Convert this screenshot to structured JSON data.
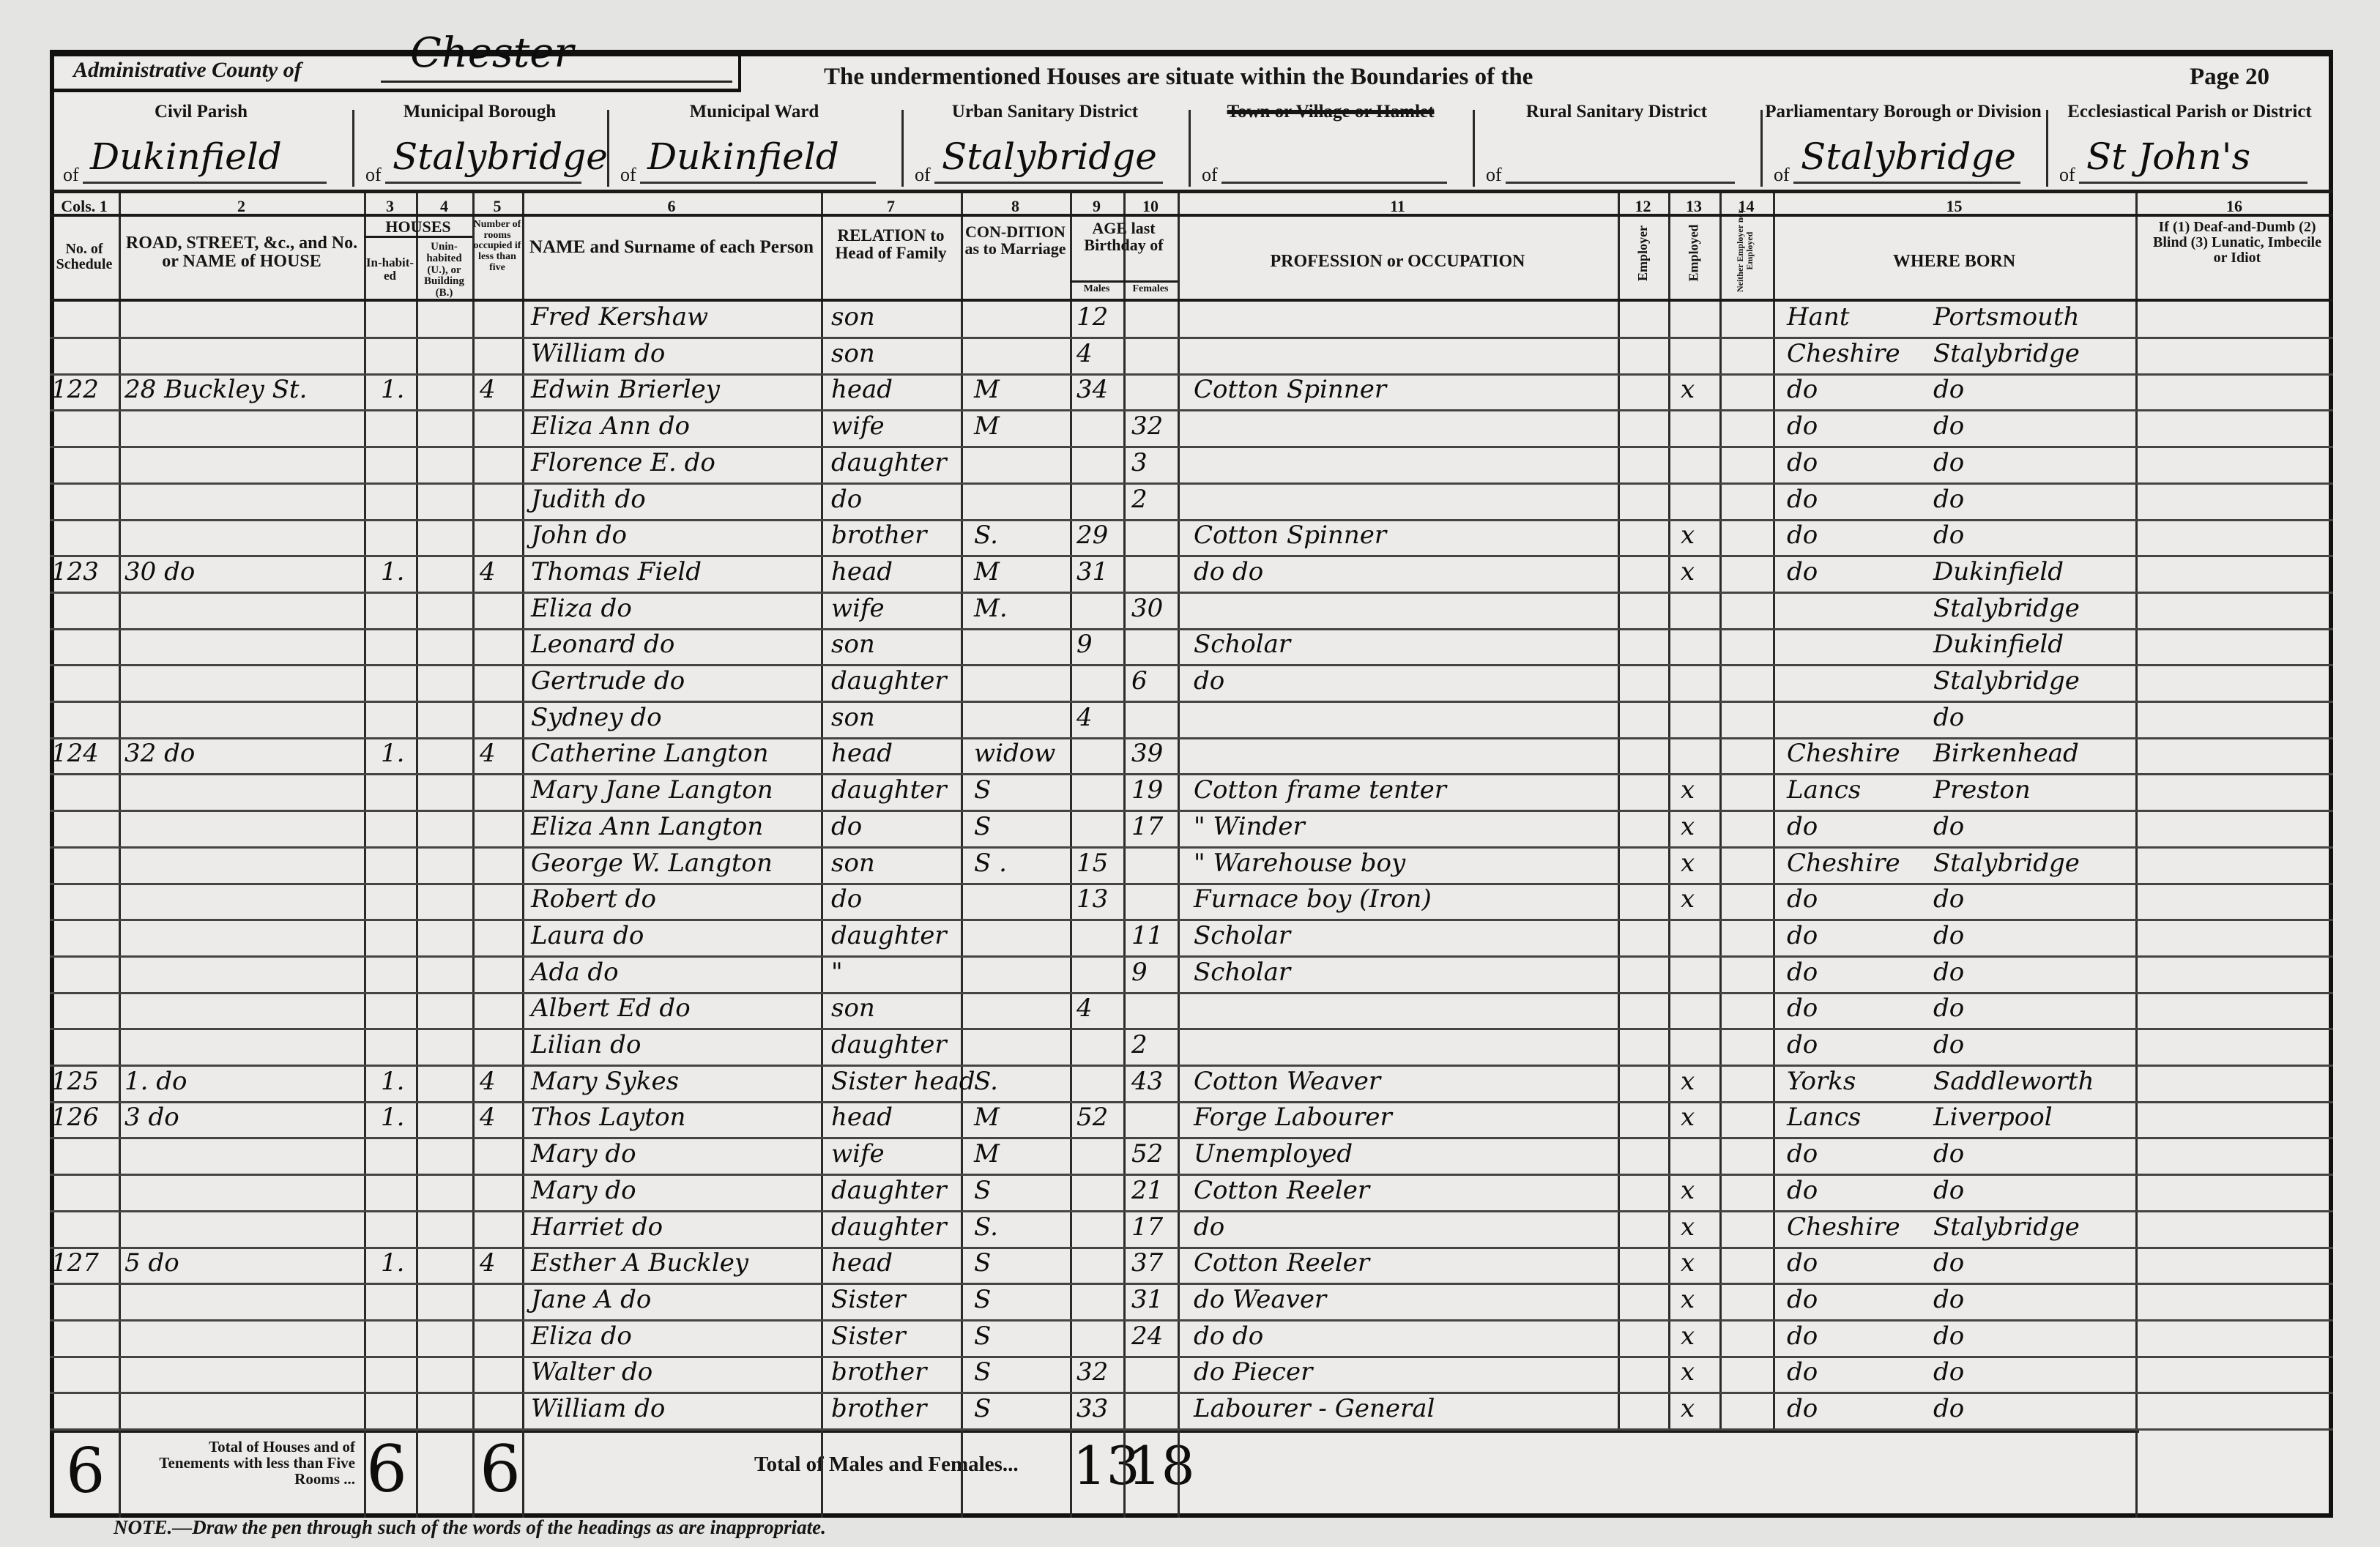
{
  "header": {
    "admin_county_label": "Administrative County of",
    "admin_county_value": "Chester",
    "title": "The undermentioned Houses are situate within the Boundaries of the",
    "page": "Page 20",
    "of_prefix": "of",
    "districts": [
      {
        "label": "Civil Parish",
        "value": "Dukinfield",
        "struck": false
      },
      {
        "label": "Municipal Borough",
        "value": "Stalybridge",
        "struck": false
      },
      {
        "label": "Municipal Ward",
        "value": "Dukinfield",
        "struck": false
      },
      {
        "label": "Urban Sanitary District",
        "value": "Stalybridge",
        "struck": false
      },
      {
        "label": "Town or Village or Hamlet",
        "value": "",
        "struck": true
      },
      {
        "label": "Rural Sanitary District",
        "value": "",
        "struck": false
      },
      {
        "label": "Parliamentary Borough or Division",
        "value": "Stalybridge",
        "struck": false
      },
      {
        "label": "Ecclesiastical Parish or District",
        "value": "St John's",
        "struck": false
      }
    ]
  },
  "columns": {
    "numbers": [
      "Cols. 1",
      "2",
      "3",
      "4",
      "5",
      "6",
      "7",
      "8",
      "9",
      "10",
      "11",
      "12",
      "13",
      "14",
      "15",
      "16"
    ],
    "schedule": "No. of Schedule",
    "road": "ROAD, STREET, &c., and No. or NAME of HOUSE",
    "houses": "HOUSES",
    "inhabited": "In-habit-ed",
    "uninhabited": "Unin-habited (U.), or Building (B.)",
    "rooms": "Number of rooms occupied if less than five",
    "name": "NAME and Surname of each Person",
    "relation": "RELATION to Head of Family",
    "condition": "CON-DITION as to Marriage",
    "age": "AGE last Birthday of",
    "males": "Males",
    "females": "Females",
    "occupation": "PROFESSION or OCCUPATION",
    "employer": "Employer",
    "employed": "Employed",
    "neither": "Neither Employer nor Employed",
    "where_born": "WHERE BORN",
    "infirmity": "If (1) Deaf-and-Dumb (2) Blind (3) Lunatic, Imbecile or Idiot"
  },
  "rows": [
    {
      "schedule": "",
      "address": "",
      "inhabited": "",
      "rooms": "",
      "name": "Fred Kershaw",
      "relation": "son",
      "condition": "",
      "age_m": "12",
      "age_f": "",
      "occupation": "",
      "employed": "",
      "born_county": "Hant",
      "born_place": "Portsmouth"
    },
    {
      "schedule": "",
      "address": "",
      "inhabited": "",
      "rooms": "",
      "name": "William do",
      "relation": "son",
      "condition": "",
      "age_m": "4",
      "age_f": "",
      "occupation": "",
      "employed": "",
      "born_county": "Cheshire",
      "born_place": "Stalybridge"
    },
    {
      "schedule": "122",
      "address": "28 Buckley St.",
      "inhabited": "1.",
      "rooms": "4",
      "name": "Edwin Brierley",
      "relation": "head",
      "condition": "M",
      "age_m": "34",
      "age_f": "",
      "occupation": "Cotton Spinner",
      "employed": "x",
      "born_county": "do",
      "born_place": "do"
    },
    {
      "schedule": "",
      "address": "",
      "inhabited": "",
      "rooms": "",
      "name": "Eliza Ann do",
      "relation": "wife",
      "condition": "M",
      "age_m": "",
      "age_f": "32",
      "occupation": "",
      "employed": "",
      "born_county": "do",
      "born_place": "do"
    },
    {
      "schedule": "",
      "address": "",
      "inhabited": "",
      "rooms": "",
      "name": "Florence E. do",
      "relation": "daughter",
      "condition": "",
      "age_m": "",
      "age_f": "3",
      "occupation": "",
      "employed": "",
      "born_county": "do",
      "born_place": "do"
    },
    {
      "schedule": "",
      "address": "",
      "inhabited": "",
      "rooms": "",
      "name": "Judith do",
      "relation": "do",
      "condition": "",
      "age_m": "",
      "age_f": "2",
      "occupation": "",
      "employed": "",
      "born_county": "do",
      "born_place": "do"
    },
    {
      "schedule": "",
      "address": "",
      "inhabited": "",
      "rooms": "",
      "name": "John do",
      "relation": "brother",
      "condition": "S.",
      "age_m": "29",
      "age_f": "",
      "occupation": "Cotton Spinner",
      "employed": "x",
      "born_county": "do",
      "born_place": "do"
    },
    {
      "schedule": "123",
      "address": "30 do",
      "inhabited": "1.",
      "rooms": "4",
      "name": "Thomas Field",
      "relation": "head",
      "condition": "M",
      "age_m": "31",
      "age_f": "",
      "occupation": "do do",
      "employed": "x",
      "born_county": "do",
      "born_place": "Dukinfield"
    },
    {
      "schedule": "",
      "address": "",
      "inhabited": "",
      "rooms": "",
      "name": "Eliza do",
      "relation": "wife",
      "condition": "M.",
      "age_m": "",
      "age_f": "30",
      "occupation": "",
      "employed": "",
      "born_county": "",
      "born_place": "Stalybridge"
    },
    {
      "schedule": "",
      "address": "",
      "inhabited": "",
      "rooms": "",
      "name": "Leonard do",
      "relation": "son",
      "condition": "",
      "age_m": "9",
      "age_f": "",
      "occupation": "Scholar",
      "employed": "",
      "born_county": "",
      "born_place": "Dukinfield"
    },
    {
      "schedule": "",
      "address": "",
      "inhabited": "",
      "rooms": "",
      "name": "Gertrude do",
      "relation": "daughter",
      "condition": "",
      "age_m": "",
      "age_f": "6",
      "occupation": "do",
      "employed": "",
      "born_county": "",
      "born_place": "Stalybridge"
    },
    {
      "schedule": "",
      "address": "",
      "inhabited": "",
      "rooms": "",
      "name": "Sydney do",
      "relation": "son",
      "condition": "",
      "age_m": "4",
      "age_f": "",
      "occupation": "",
      "employed": "",
      "born_county": "",
      "born_place": "do"
    },
    {
      "schedule": "124",
      "address": "32 do",
      "inhabited": "1.",
      "rooms": "4",
      "name": "Catherine Langton",
      "relation": "head",
      "condition": "widow",
      "age_m": "",
      "age_f": "39",
      "occupation": "",
      "employed": "",
      "born_county": "Cheshire",
      "born_place": "Birkenhead"
    },
    {
      "schedule": "",
      "address": "",
      "inhabited": "",
      "rooms": "",
      "name": "Mary Jane Langton",
      "relation": "daughter",
      "condition": "S",
      "age_m": "",
      "age_f": "19",
      "occupation": "Cotton frame tenter",
      "employed": "x",
      "born_county": "Lancs",
      "born_place": "Preston"
    },
    {
      "schedule": "",
      "address": "",
      "inhabited": "",
      "rooms": "",
      "name": "Eliza Ann Langton",
      "relation": "do",
      "condition": "S",
      "age_m": "",
      "age_f": "17",
      "occupation": "\" Winder",
      "employed": "x",
      "born_county": "do",
      "born_place": "do"
    },
    {
      "schedule": "",
      "address": "",
      "inhabited": "",
      "rooms": "",
      "name": "George W. Langton",
      "relation": "son",
      "condition": "S .",
      "age_m": "15",
      "age_f": "",
      "occupation": "\" Warehouse boy",
      "employed": "x",
      "born_county": "Cheshire",
      "born_place": "Stalybridge"
    },
    {
      "schedule": "",
      "address": "",
      "inhabited": "",
      "rooms": "",
      "name": "Robert do",
      "relation": "do",
      "condition": "",
      "age_m": "13",
      "age_f": "",
      "occupation": "Furnace boy (Iron)",
      "employed": "x",
      "born_county": "do",
      "born_place": "do"
    },
    {
      "schedule": "",
      "address": "",
      "inhabited": "",
      "rooms": "",
      "name": "Laura do",
      "relation": "daughter",
      "condition": "",
      "age_m": "",
      "age_f": "11",
      "occupation": "Scholar",
      "employed": "",
      "born_county": "do",
      "born_place": "do"
    },
    {
      "schedule": "",
      "address": "",
      "inhabited": "",
      "rooms": "",
      "name": "Ada do",
      "relation": "\"",
      "condition": "",
      "age_m": "",
      "age_f": "9",
      "occupation": "Scholar",
      "employed": "",
      "born_county": "do",
      "born_place": "do"
    },
    {
      "schedule": "",
      "address": "",
      "inhabited": "",
      "rooms": "",
      "name": "Albert Ed do",
      "relation": "son",
      "condition": "",
      "age_m": "4",
      "age_f": "",
      "occupation": "",
      "employed": "",
      "born_county": "do",
      "born_place": "do"
    },
    {
      "schedule": "",
      "address": "",
      "inhabited": "",
      "rooms": "",
      "name": "Lilian do",
      "relation": "daughter",
      "condition": "",
      "age_m": "",
      "age_f": "2",
      "occupation": "",
      "employed": "",
      "born_county": "do",
      "born_place": "do"
    },
    {
      "schedule": "125",
      "address": "1. do",
      "inhabited": "1.",
      "rooms": "4",
      "name": "Mary Sykes",
      "relation": "Sister head",
      "condition": "S.",
      "age_m": "",
      "age_f": "43",
      "occupation": "Cotton Weaver",
      "employed": "x",
      "born_county": "Yorks",
      "born_place": "Saddleworth"
    },
    {
      "schedule": "126",
      "address": "3 do",
      "inhabited": "1.",
      "rooms": "4",
      "name": "Thos Layton",
      "relation": "head",
      "condition": "M",
      "age_m": "52",
      "age_f": "",
      "occupation": "Forge Labourer",
      "employed": "x",
      "born_county": "Lancs",
      "born_place": "Liverpool"
    },
    {
      "schedule": "",
      "address": "",
      "inhabited": "",
      "rooms": "",
      "name": "Mary do",
      "relation": "wife",
      "condition": "M",
      "age_m": "",
      "age_f": "52",
      "occupation": "Unemployed",
      "employed": "",
      "born_county": "do",
      "born_place": "do"
    },
    {
      "schedule": "",
      "address": "",
      "inhabited": "",
      "rooms": "",
      "name": "Mary do",
      "relation": "daughter",
      "condition": "S",
      "age_m": "",
      "age_f": "21",
      "occupation": "Cotton Reeler",
      "employed": "x",
      "born_county": "do",
      "born_place": "do"
    },
    {
      "schedule": "",
      "address": "",
      "inhabited": "",
      "rooms": "",
      "name": "Harriet do",
      "relation": "daughter",
      "condition": "S.",
      "age_m": "",
      "age_f": "17",
      "occupation": "do",
      "employed": "x",
      "born_county": "Cheshire",
      "born_place": "Stalybridge"
    },
    {
      "schedule": "127",
      "address": "5 do",
      "inhabited": "1.",
      "rooms": "4",
      "name": "Esther A Buckley",
      "relation": "head",
      "condition": "S",
      "age_m": "",
      "age_f": "37",
      "occupation": "Cotton Reeler",
      "employed": "x",
      "born_county": "do",
      "born_place": "do"
    },
    {
      "schedule": "",
      "address": "",
      "inhabited": "",
      "rooms": "",
      "name": "Jane A do",
      "relation": "Sister",
      "condition": "S",
      "age_m": "",
      "age_f": "31",
      "occupation": "do Weaver",
      "employed": "x",
      "born_county": "do",
      "born_place": "do"
    },
    {
      "schedule": "",
      "address": "",
      "inhabited": "",
      "rooms": "",
      "name": "Eliza do",
      "relation": "Sister",
      "condition": "S",
      "age_m": "",
      "age_f": "24",
      "occupation": "do do",
      "employed": "x",
      "born_county": "do",
      "born_place": "do"
    },
    {
      "schedule": "",
      "address": "",
      "inhabited": "",
      "rooms": "",
      "name": "Walter do",
      "relation": "brother",
      "condition": "S",
      "age_m": "32",
      "age_f": "",
      "occupation": "do Piecer",
      "employed": "x",
      "born_county": "do",
      "born_place": "do"
    },
    {
      "schedule": "",
      "address": "",
      "inhabited": "",
      "rooms": "",
      "name": "William do",
      "relation": "brother",
      "condition": "S",
      "age_m": "33",
      "age_f": "",
      "occupation": "Labourer - General",
      "employed": "x",
      "born_county": "do",
      "born_place": "do"
    }
  ],
  "totals": {
    "schedules": "6",
    "houses_label": "Total of Houses and of Tenements with less than Five Rooms ...",
    "inhabited": "6",
    "rooms": "6",
    "persons_label": "Total of Males and Females...",
    "males": "13",
    "females": "18"
  },
  "note": "NOTE.—Draw the pen through such of the words of the headings as are inappropriate."
}
